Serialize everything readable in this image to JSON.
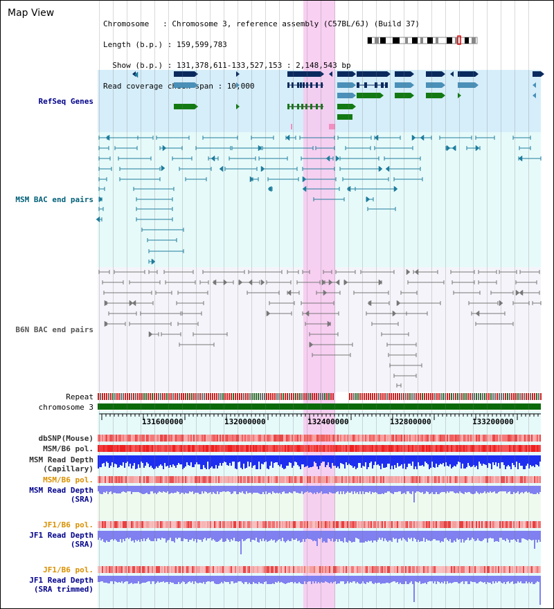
{
  "view_title": "Map View",
  "chromosome_info": {
    "line1": "Chromosome   : Chromosome 3, reference assembly (C57BL/6J) (Build 37)",
    "line2": "Length (b.p.) : 159,599,783",
    "line3": "  Show (b.p.) : 131,378,611-133,527,153 : 2,148,543 bp",
    "line4": "Read coverage check span : 10,000"
  },
  "tracks": {
    "refseq_genes": "RefSeq Genes",
    "msm_bac": "MSM BAC end pairs",
    "b6n_bac": "B6N BAC end pairs",
    "repeat": "Repeat",
    "chromosome": "chromosome 3",
    "dbsnp": "dbSNP(Mouse)",
    "msm_b6_pol_1": "MSM/B6 pol.",
    "msm_read_depth_cap_1": "MSM Read Depth",
    "msm_read_depth_cap_2": "(Capillary)",
    "msm_b6_pol_2": "MSM/B6 pol.",
    "msm_read_depth_sra_1": "MSM Read Depth",
    "msm_read_depth_sra_2": "(SRA)",
    "jf1_b6_pol_1": "JF1/B6 pol.",
    "jf1_read_depth_sra_1": "JF1 Read Depth",
    "jf1_read_depth_sra_2": "(SRA)",
    "jf1_b6_pol_2": "JF1/B6 pol.",
    "jf1_read_depth_trim_1": "JF1 Read Depth",
    "jf1_read_depth_trim_2": "(SRA trimmed)"
  },
  "axis_labels": [
    "131600000",
    "132000000",
    "132400000",
    "132800000",
    "133200000"
  ],
  "colors": {
    "refseq_bg": "#d6eefa",
    "msm_bg": "#e6fafa",
    "b6n_bg": "#f4f4fa",
    "highlight": "#f7c8ee",
    "navy_gene": "#0a2a5e",
    "steel_gene": "#4a90b8",
    "green_gene": "#137a13",
    "msm_pair": "#1e7c9c",
    "b6n_pair": "#777777",
    "chromosome_bar": "#0a6a0a",
    "snp_red": "#ee3b3b",
    "depth_blue": "#1e2ef0",
    "depth_light_blue": "#8080f0",
    "label_blue": "#00008b",
    "label_orange": "#d99000",
    "label_teal": "#005f78"
  }
}
